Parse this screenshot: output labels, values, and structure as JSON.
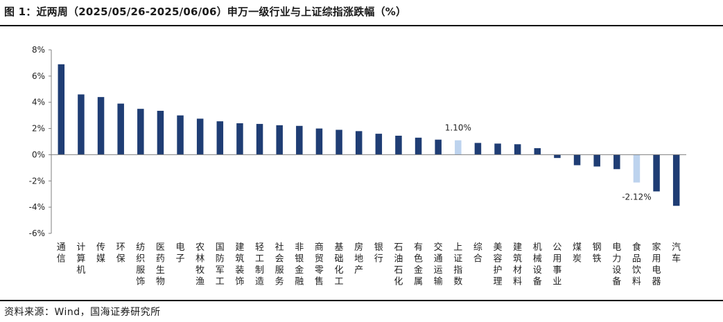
{
  "title": "图 1：近两周（2025/05/26-2025/06/06）申万一级行业与上证综指涨跌幅（%）",
  "source": "资料来源：Wind，国海证券研究所",
  "colors": {
    "bar": "#1f3d74",
    "highlight": "#bdd3ee",
    "axis": "#7f7f7f"
  },
  "chart_data": {
    "type": "bar",
    "title": "图 1：近两周（2025/05/26-2025/06/06）申万一级行业与上证综指涨跌幅（%）",
    "xlabel": "",
    "ylabel": "",
    "ylim": [
      -6,
      8
    ],
    "yticks": [
      "8%",
      "6%",
      "4%",
      "2%",
      "0%",
      "-2%",
      "-4%",
      "-6%"
    ],
    "grid": false,
    "categories": [
      "通信",
      "计算机",
      "传媒",
      "环保",
      "纺织服饰",
      "医药生物",
      "电子",
      "农林牧渔",
      "国防军工",
      "建筑装饰",
      "轻工制造",
      "社会服务",
      "非银金融",
      "商贸零售",
      "基础化工",
      "房地产",
      "银行",
      "石油石化",
      "有色金属",
      "交通运输",
      "上证指数",
      "综合",
      "美容护理",
      "建筑材料",
      "机械设备",
      "公用事业",
      "煤炭",
      "钢铁",
      "电力设备",
      "食品饮料",
      "家用电器",
      "汽车"
    ],
    "values": [
      6.9,
      4.6,
      4.4,
      3.9,
      3.5,
      3.35,
      3.0,
      2.75,
      2.55,
      2.4,
      2.35,
      2.25,
      2.2,
      2.0,
      1.9,
      1.8,
      1.6,
      1.45,
      1.3,
      1.15,
      1.1,
      0.9,
      0.85,
      0.8,
      0.5,
      -0.25,
      -0.8,
      -0.9,
      -1.1,
      -2.12,
      -2.8,
      -3.9
    ],
    "highlighted": [
      "上证指数",
      "食品饮料"
    ],
    "data_labels": [
      {
        "category": "上证指数",
        "text": "1.10%"
      },
      {
        "category": "食品饮料",
        "text": "-2.12%"
      }
    ]
  }
}
